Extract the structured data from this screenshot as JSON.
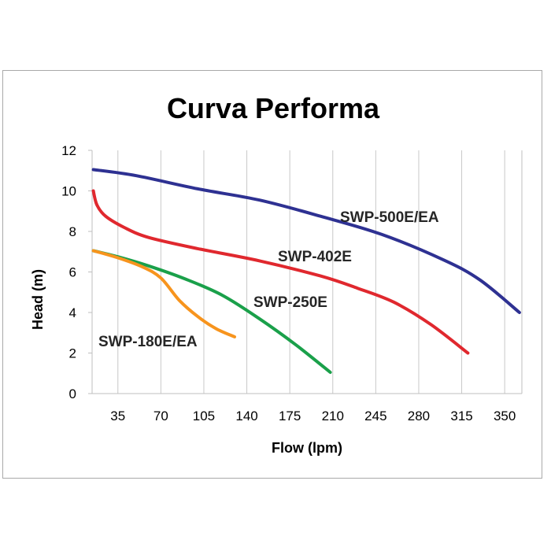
{
  "chart_data": {
    "type": "line",
    "title": "Curva Performa",
    "xlabel": "Flow (lpm)",
    "ylabel": "Head (m)",
    "xlim": [
      14,
      364
    ],
    "ylim": [
      0,
      12
    ],
    "xticks": [
      35,
      70,
      105,
      140,
      175,
      210,
      245,
      280,
      315,
      350
    ],
    "yticks": [
      0,
      2,
      4,
      6,
      8,
      10,
      12
    ],
    "grid": "vertical",
    "series": [
      {
        "name": "SWP-500E/EA",
        "color": "#2e3192",
        "points": [
          [
            15,
            11.05
          ],
          [
            50,
            10.75
          ],
          [
            100,
            10.1
          ],
          [
            150,
            9.55
          ],
          [
            200,
            8.75
          ],
          [
            250,
            7.85
          ],
          [
            300,
            6.6
          ],
          [
            330,
            5.6
          ],
          [
            362,
            4.0
          ]
        ]
      },
      {
        "name": "SWP-402E",
        "color": "#e0282e",
        "points": [
          [
            15,
            10.0
          ],
          [
            18,
            9.3
          ],
          [
            25,
            8.75
          ],
          [
            40,
            8.2
          ],
          [
            60,
            7.7
          ],
          [
            100,
            7.15
          ],
          [
            150,
            6.55
          ],
          [
            200,
            5.8
          ],
          [
            230,
            5.2
          ],
          [
            260,
            4.5
          ],
          [
            290,
            3.4
          ],
          [
            320,
            2.0
          ]
        ]
      },
      {
        "name": "SWP-250E",
        "color": "#1aa04a",
        "points": [
          [
            15,
            7.05
          ],
          [
            35,
            6.75
          ],
          [
            60,
            6.3
          ],
          [
            90,
            5.65
          ],
          [
            120,
            4.85
          ],
          [
            150,
            3.7
          ],
          [
            180,
            2.4
          ],
          [
            208,
            1.05
          ]
        ]
      },
      {
        "name": "SWP-180E/EA",
        "color": "#f7941d",
        "points": [
          [
            15,
            7.05
          ],
          [
            35,
            6.7
          ],
          [
            55,
            6.25
          ],
          [
            70,
            5.7
          ],
          [
            85,
            4.6
          ],
          [
            100,
            3.8
          ],
          [
            115,
            3.2
          ],
          [
            130,
            2.8
          ]
        ]
      }
    ],
    "annotations": [
      "SWP-500E/EA",
      "SWP-402E",
      "SWP-250E",
      "SWP-180E/EA"
    ]
  }
}
